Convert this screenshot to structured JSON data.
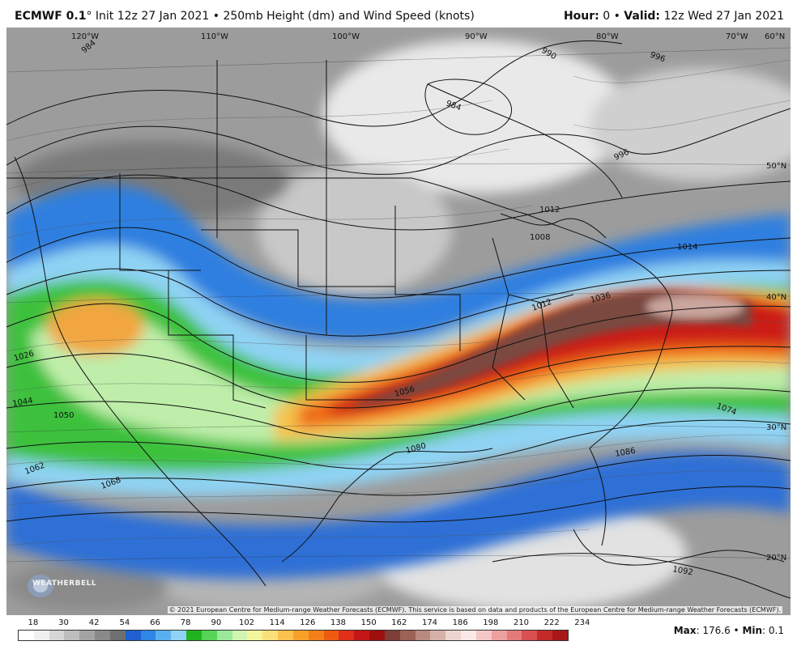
{
  "header": {
    "model": "ECMWF 0.1",
    "degree": "°",
    "init_text": "Init 12z 27 Jan 2021",
    "separator": "•",
    "product": "250mb Height (dm) and Wind Speed (knots)",
    "hour_label": "Hour:",
    "hour_value": "0",
    "valid_label": "Valid:",
    "valid_value": "12z Wed 27 Jan 2021"
  },
  "map": {
    "longitude_labels": [
      "120°W",
      "110°W",
      "100°W",
      "90°W",
      "80°W",
      "70°W",
      "60°N"
    ],
    "latitude_labels": [
      "50°N",
      "40°N",
      "30°N",
      "20°N"
    ],
    "contour_labels": [
      "984",
      "990",
      "984",
      "996",
      "996",
      "1012",
      "1008",
      "1014",
      "1026",
      "1044",
      "1050",
      "1012",
      "1036",
      "1056",
      "1074",
      "1080",
      "1062",
      "1068",
      "1086",
      "1092"
    ],
    "copyright": "© 2021 European Centre for Medium-range Weather Forecasts (ECMWF). This service is based on data and products of the European Centre for Medium-range Weather Forecasts (ECMWF).",
    "logo_text": "WEATHERBELL"
  },
  "colorbar": {
    "labels": [
      "18",
      "30",
      "42",
      "54",
      "66",
      "78",
      "90",
      "102",
      "114",
      "126",
      "138",
      "150",
      "162",
      "174",
      "186",
      "198",
      "210",
      "222",
      "234"
    ],
    "colors": [
      "#ffffff",
      "#f0f0f0",
      "#d6d6d6",
      "#bdbdbd",
      "#a3a3a3",
      "#898989",
      "#6f6f6f",
      "#1f5fd1",
      "#2e86e6",
      "#59b0f0",
      "#8fd2f5",
      "#1fb41f",
      "#55d455",
      "#9be89b",
      "#cff5b0",
      "#f3f59a",
      "#fbe07a",
      "#fbc14c",
      "#f8a12a",
      "#f5801a",
      "#ef5a12",
      "#e0301a",
      "#c41616",
      "#9e0f0f",
      "#7d3f37",
      "#9c6256",
      "#b98a7f",
      "#d6b1a8",
      "#ecd5cf",
      "#fce8e6",
      "#f5c6c6",
      "#eea0a0",
      "#e57a7a",
      "#d85050",
      "#c42a2a",
      "#a81818"
    ],
    "max_label": "Max",
    "max_value": "176.6",
    "min_label": "Min",
    "min_value": "0.1"
  }
}
